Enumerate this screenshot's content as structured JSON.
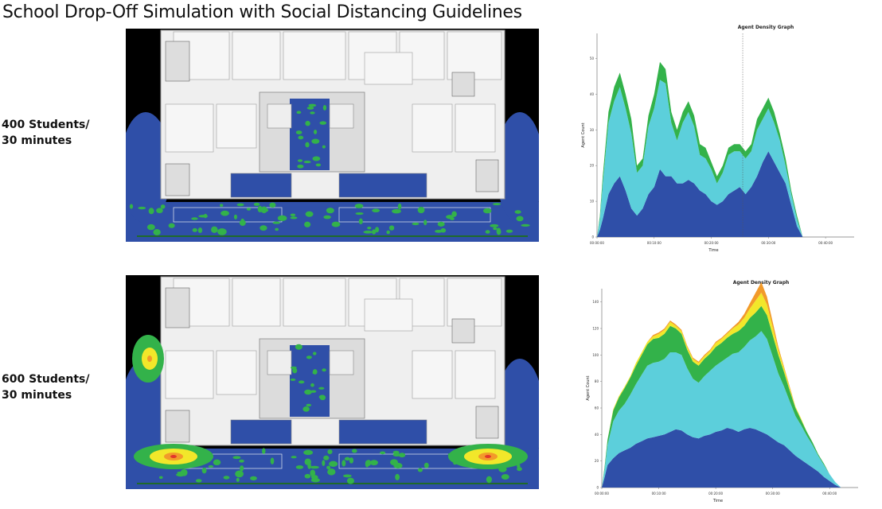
{
  "page": {
    "title": "School Drop-Off Simulation with Social Distancing Guidelines"
  },
  "scenarios": [
    {
      "label_line1": "400 Students/",
      "label_line2": "30 minutes",
      "heat": "low"
    },
    {
      "label_line1": "600 Students/",
      "label_line2": "30 minutes",
      "heat": "high"
    }
  ],
  "colors": {
    "density_low": "#2f4fa8",
    "density_mid": "#5ccfdb",
    "density_high": "#33b24a",
    "density_yellow": "#f2e72a",
    "density_orange": "#f29a2a",
    "density_red": "#e2362b",
    "floor": "#efefef",
    "background": "#000000"
  },
  "chart_data": [
    {
      "type": "area",
      "title": "Agent Density Graph",
      "xlabel": "Time",
      "ylabel": "Agent Count",
      "x_ticks": [
        "00:00:00",
        "00:10:00",
        "00:20:00",
        "00:30:00",
        "00:40:00"
      ],
      "y_ticks": [
        "0",
        "10",
        "20",
        "30",
        "40",
        "50"
      ],
      "xlim": [
        0,
        45
      ],
      "ylim": [
        0,
        57
      ],
      "stacked": true,
      "marker_x": 25.5,
      "x": [
        0,
        0.5,
        1,
        2,
        3,
        4,
        5,
        6,
        7,
        8,
        9,
        10,
        11,
        12,
        13,
        14,
        15,
        16,
        17,
        18,
        19,
        20,
        21,
        22,
        23,
        24,
        25,
        26,
        27,
        28,
        29,
        30,
        31,
        32,
        33,
        34,
        35,
        36
      ],
      "series": [
        {
          "values": [
            0,
            2,
            5,
            12,
            15,
            17,
            13,
            8,
            6,
            8,
            12,
            14,
            19,
            17,
            17,
            15,
            15,
            16,
            15,
            13,
            12,
            10,
            9,
            10,
            12,
            13,
            14,
            12,
            14,
            17,
            21,
            24,
            21,
            18,
            15,
            9,
            3,
            0
          ]
        },
        {
          "values": [
            0,
            3,
            10,
            20,
            23,
            25,
            23,
            21,
            12,
            12,
            19,
            22,
            25,
            26,
            15,
            12,
            17,
            19,
            16,
            10,
            10,
            9,
            6,
            8,
            11,
            11,
            10,
            10,
            10,
            13,
            12,
            12,
            11,
            9,
            5,
            3,
            2,
            0
          ]
        },
        {
          "values": [
            0,
            1,
            2,
            3,
            4,
            4,
            4,
            4,
            2,
            2,
            3,
            4,
            5,
            4,
            3,
            3,
            3,
            3,
            3,
            3,
            3,
            2,
            2,
            2,
            2,
            2,
            2,
            2,
            2,
            3,
            3,
            3,
            3,
            2,
            2,
            1,
            1,
            0
          ]
        }
      ]
    },
    {
      "type": "area",
      "title": "Agent Density Graph",
      "xlabel": "Time",
      "ylabel": "Agent Count",
      "x_ticks": [
        "00:00:00",
        "00:10:00",
        "00:20:00",
        "00:30:00",
        "00:40:00"
      ],
      "y_ticks": [
        "0",
        "20",
        "40",
        "60",
        "80",
        "100",
        "120",
        "140"
      ],
      "xlim": [
        0,
        45
      ],
      "ylim": [
        0,
        150
      ],
      "stacked": true,
      "x": [
        0,
        0.5,
        1,
        2,
        3,
        4,
        5,
        6,
        7,
        8,
        9,
        10,
        11,
        12,
        13,
        14,
        15,
        16,
        17,
        18,
        19,
        20,
        21,
        22,
        23,
        24,
        25,
        26,
        27,
        28,
        29,
        30,
        31,
        32,
        33,
        34,
        35,
        36,
        37,
        38,
        39,
        40,
        41,
        42,
        43,
        44,
        45
      ],
      "series": [
        {
          "values": [
            0,
            8,
            17,
            22,
            26,
            28,
            30,
            33,
            35,
            37,
            38,
            39,
            40,
            42,
            44,
            43,
            40,
            38,
            37,
            39,
            40,
            42,
            43,
            45,
            44,
            42,
            44,
            45,
            44,
            42,
            40,
            37,
            34,
            32,
            28,
            24,
            21,
            18,
            15,
            12,
            8,
            5,
            2,
            0,
            0,
            0,
            0
          ]
        },
        {
          "values": [
            0,
            6,
            15,
            28,
            32,
            35,
            40,
            45,
            50,
            55,
            56,
            56,
            57,
            60,
            58,
            57,
            50,
            44,
            42,
            45,
            48,
            50,
            52,
            53,
            57,
            60,
            62,
            66,
            70,
            76,
            72,
            62,
            52,
            44,
            37,
            30,
            26,
            21,
            17,
            12,
            9,
            5,
            2,
            0,
            0,
            0,
            0
          ]
        },
        {
          "values": [
            0,
            2,
            4,
            8,
            10,
            12,
            13,
            14,
            15,
            16,
            18,
            18,
            19,
            20,
            18,
            16,
            14,
            13,
            13,
            13,
            13,
            14,
            14,
            15,
            15,
            16,
            16,
            17,
            18,
            19,
            18,
            16,
            14,
            11,
            8,
            6,
            4,
            3,
            2,
            1,
            1,
            0,
            0,
            0,
            0,
            0,
            0
          ]
        },
        {
          "values": [
            0,
            0,
            0,
            1,
            1,
            1,
            1,
            2,
            2,
            2,
            2,
            3,
            3,
            3,
            2,
            2,
            2,
            2,
            2,
            2,
            2,
            3,
            3,
            3,
            4,
            5,
            6,
            7,
            9,
            10,
            8,
            6,
            4,
            3,
            2,
            1,
            1,
            0,
            0,
            0,
            0,
            0,
            0,
            0,
            0,
            0,
            0
          ]
        },
        {
          "values": [
            0,
            0,
            0,
            0,
            0,
            0,
            0,
            0,
            0,
            0,
            1,
            1,
            1,
            1,
            1,
            1,
            1,
            1,
            1,
            1,
            1,
            1,
            1,
            1,
            1,
            2,
            3,
            4,
            6,
            8,
            6,
            4,
            2,
            1,
            1,
            0,
            0,
            0,
            0,
            0,
            0,
            0,
            0,
            0,
            0,
            0,
            0
          ]
        }
      ]
    }
  ]
}
